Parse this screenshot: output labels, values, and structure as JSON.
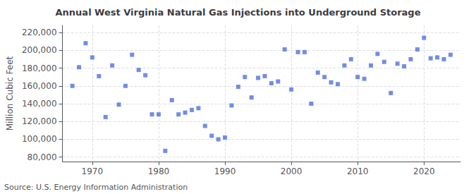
{
  "chart_data": {
    "type": "scatter",
    "title": "Annual West Virginia Natural Gas Injections into Underground Storage",
    "ylabel": "Million Cubic Feet",
    "annotation": "Source: U.S. Energy Information Administration",
    "marker": "square",
    "grid": true,
    "xlim": [
      1965.5,
      2025.5
    ],
    "ylim": [
      75000,
      228000
    ],
    "xticks": [
      1970,
      1980,
      1990,
      2000,
      2010,
      2020
    ],
    "yticks": [
      {
        "value": 80000,
        "label": "80,000"
      },
      {
        "value": 100000,
        "label": "100,000"
      },
      {
        "value": 120000,
        "label": "120,000"
      },
      {
        "value": 140000,
        "label": "140,000"
      },
      {
        "value": 160000,
        "label": "160,000"
      },
      {
        "value": 180000,
        "label": "180,000"
      },
      {
        "value": 200000,
        "label": "200,000"
      },
      {
        "value": 220000,
        "label": "220,000"
      }
    ],
    "x": [
      1967,
      1968,
      1969,
      1970,
      1971,
      1972,
      1973,
      1974,
      1975,
      1976,
      1977,
      1978,
      1979,
      1980,
      1981,
      1982,
      1983,
      1984,
      1985,
      1986,
      1987,
      1988,
      1989,
      1990,
      1991,
      1992,
      1993,
      1994,
      1995,
      1996,
      1997,
      1998,
      1999,
      2000,
      2001,
      2002,
      2003,
      2004,
      2005,
      2006,
      2007,
      2008,
      2009,
      2010,
      2011,
      2012,
      2013,
      2014,
      2015,
      2016,
      2017,
      2018,
      2019,
      2020,
      2021,
      2022,
      2023,
      2024
    ],
    "values": [
      160000,
      181000,
      208000,
      192000,
      171000,
      125000,
      183000,
      139000,
      160000,
      195000,
      178000,
      172000,
      128000,
      128000,
      87000,
      144000,
      128000,
      130000,
      133000,
      135000,
      115000,
      104000,
      100000,
      102000,
      138000,
      159000,
      170000,
      147000,
      169000,
      171000,
      163000,
      165000,
      201000,
      156000,
      198000,
      198000,
      140000,
      175000,
      170000,
      164000,
      162000,
      183000,
      190000,
      170000,
      168000,
      183000,
      196000,
      187000,
      152000,
      185000,
      182000,
      190000,
      201000,
      214000,
      191000,
      192000,
      190000,
      195000
    ]
  }
}
